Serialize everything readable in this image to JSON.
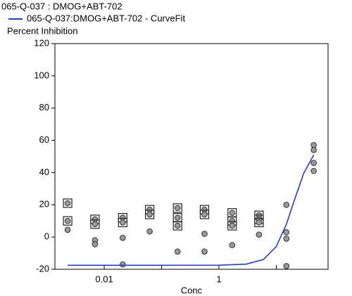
{
  "chart_data": {
    "type": "scatter",
    "title": "065-Q-037  : DMOG+ABT-702",
    "ylabel": "Percent Inhibition",
    "xlabel": "Conc",
    "xscale": "log",
    "xlim": [
      0.00138,
      80
    ],
    "xticks": [
      0.01,
      1
    ],
    "xminor_ticks": [
      0.1,
      10
    ],
    "ylim": [
      -20,
      120
    ],
    "yticks": [
      -20,
      0,
      20,
      40,
      60,
      80,
      100,
      120
    ],
    "points": {
      "color": "#9a9a9a",
      "x": [
        0.0023,
        0.0023,
        0.0023,
        0.0069,
        0.0069,
        0.0069,
        0.0069,
        0.021,
        0.021,
        0.021,
        0.021,
        0.062,
        0.062,
        0.062,
        0.19,
        0.19,
        0.19,
        0.19,
        0.56,
        0.56,
        0.56,
        0.56,
        1.7,
        1.7,
        1.7,
        1.7,
        5,
        5,
        5,
        5,
        15,
        15,
        15,
        15,
        45,
        45,
        45,
        45
      ],
      "y": [
        21,
        10,
        4.5,
        11,
        8,
        -2,
        -4.5,
        12,
        9,
        -0.5,
        -17,
        17,
        14,
        3.5,
        18,
        12,
        7,
        -9,
        17,
        14,
        2,
        -9,
        15,
        10,
        7,
        -5,
        13.5,
        11,
        9,
        1.5,
        20,
        3,
        -1,
        -18,
        57,
        54,
        46,
        41
      ],
      "masked": [
        true,
        true,
        false,
        true,
        true,
        false,
        false,
        true,
        true,
        false,
        false,
        true,
        true,
        false,
        true,
        true,
        true,
        false,
        true,
        true,
        false,
        false,
        true,
        true,
        true,
        false,
        true,
        true,
        true,
        false,
        false,
        false,
        false,
        false,
        false,
        false,
        false,
        false
      ]
    },
    "series": [
      {
        "name": "065-Q-037:DMOG+ABT-702 - CurveFit",
        "color": "#1f3fdc",
        "x": [
          0.0023,
          0.01,
          0.1,
          1,
          3,
          6,
          10,
          15,
          20,
          30,
          45
        ],
        "values": [
          -17.5,
          -17.5,
          -17.5,
          -17.46,
          -16.8,
          -13.9,
          -5.9,
          7.9,
          21.3,
          39.4,
          51
        ]
      }
    ]
  }
}
